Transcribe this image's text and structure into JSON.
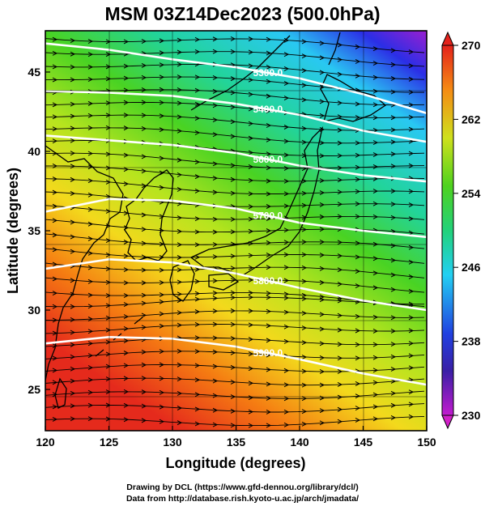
{
  "title": "MSM 03Z14Dec2023 (500.0hPa)",
  "xaxis": {
    "label": "Longitude (degrees)",
    "range": [
      120,
      150
    ],
    "ticks": [
      "120",
      "125",
      "130",
      "135",
      "140",
      "145",
      "150"
    ]
  },
  "yaxis": {
    "label": "Latitude  (degrees)",
    "range": [
      22.4,
      47.6
    ],
    "ticks": [
      "25",
      "30",
      "35",
      "40",
      "45"
    ]
  },
  "colorbar": {
    "min": 230,
    "max": 270,
    "ticks": [
      "230",
      "238",
      "246",
      "254",
      "262",
      "270"
    ]
  },
  "contours": [
    {
      "label": "5300.0",
      "points": [
        [
          120,
          46.8
        ],
        [
          125,
          46.4
        ],
        [
          130,
          45.8
        ],
        [
          135,
          45.3
        ],
        [
          140,
          44.6
        ],
        [
          145,
          43.6
        ],
        [
          150,
          42.4
        ]
      ]
    },
    {
      "label": "5400.0",
      "points": [
        [
          120,
          43.8
        ],
        [
          125,
          43.7
        ],
        [
          130,
          43.5
        ],
        [
          135,
          43.0
        ],
        [
          140,
          42.3
        ],
        [
          145,
          41.3
        ],
        [
          150,
          40.6
        ]
      ]
    },
    {
      "label": "5600.0",
      "points": [
        [
          120,
          41.0
        ],
        [
          125,
          40.7
        ],
        [
          130,
          40.4
        ],
        [
          135,
          39.9
        ],
        [
          140,
          39.1
        ],
        [
          145,
          38.5
        ],
        [
          150,
          38.1
        ]
      ]
    },
    {
      "label": "5700.0",
      "points": [
        [
          120,
          36.2
        ],
        [
          125,
          37.0
        ],
        [
          130,
          36.9
        ],
        [
          135,
          36.4
        ],
        [
          140,
          35.5
        ],
        [
          145,
          35.0
        ],
        [
          150,
          34.6
        ]
      ]
    },
    {
      "label": "5800.0",
      "points": [
        [
          120,
          32.6
        ],
        [
          125,
          33.2
        ],
        [
          130,
          33.0
        ],
        [
          135,
          32.3
        ],
        [
          140,
          31.4
        ],
        [
          145,
          30.6
        ],
        [
          150,
          30.0
        ]
      ]
    },
    {
      "label": "5900.0",
      "points": [
        [
          120,
          27.9
        ],
        [
          125,
          28.3
        ],
        [
          130,
          28.2
        ],
        [
          135,
          27.7
        ],
        [
          140,
          26.9
        ],
        [
          145,
          26.0
        ],
        [
          150,
          25.3
        ]
      ]
    }
  ],
  "credits": {
    "line1": "Drawing by DCL (https://www.gfd-dennou.org/library/dcl/)",
    "line2": "Data from http://database.rish.kyoto-u.ac.jp/arch/jmadata/"
  }
}
